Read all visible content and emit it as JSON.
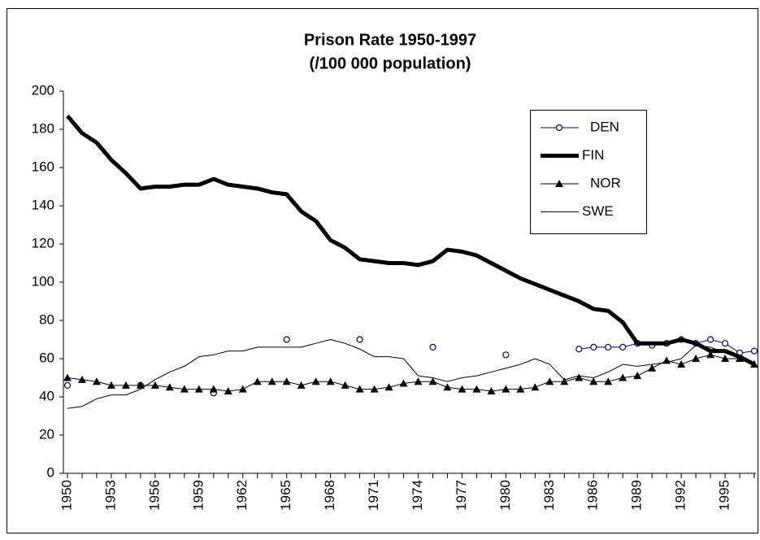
{
  "chart_data": {
    "type": "line",
    "title": [
      "Prison Rate 1950-1997",
      "(/100 000 population)"
    ],
    "x": [
      1950,
      1951,
      1952,
      1953,
      1954,
      1955,
      1956,
      1957,
      1958,
      1959,
      1960,
      1961,
      1962,
      1963,
      1964,
      1965,
      1966,
      1967,
      1968,
      1969,
      1970,
      1971,
      1972,
      1973,
      1974,
      1975,
      1976,
      1977,
      1978,
      1979,
      1980,
      1981,
      1982,
      1983,
      1984,
      1985,
      1986,
      1987,
      1988,
      1989,
      1990,
      1991,
      1992,
      1993,
      1994,
      1995,
      1996,
      1997
    ],
    "xlim": [
      1950,
      1997
    ],
    "xticks": [
      1950,
      1953,
      1956,
      1959,
      1962,
      1965,
      1968,
      1971,
      1974,
      1977,
      1980,
      1983,
      1986,
      1989,
      1992,
      1995
    ],
    "ylim": [
      0,
      200
    ],
    "yticks": [
      0,
      20,
      40,
      60,
      80,
      100,
      120,
      140,
      160,
      180,
      200
    ],
    "grid": false,
    "legend": "upper right",
    "series": [
      {
        "name": "DEN",
        "color": "#000080",
        "line_width": 1,
        "marker": "circle",
        "values": [
          46,
          null,
          null,
          null,
          null,
          46,
          null,
          null,
          null,
          null,
          42,
          null,
          null,
          null,
          null,
          70,
          null,
          null,
          null,
          null,
          70,
          null,
          null,
          null,
          null,
          66,
          null,
          null,
          null,
          null,
          62,
          null,
          null,
          null,
          null,
          65,
          66,
          66,
          66,
          68,
          67,
          68,
          70,
          68,
          70,
          68,
          63,
          64
        ]
      },
      {
        "name": "FIN",
        "color": "#000000",
        "line_width": 5,
        "marker": "none",
        "values": [
          187,
          178,
          173,
          164,
          157,
          149,
          150,
          150,
          151,
          151,
          154,
          151,
          150,
          149,
          147,
          146,
          137,
          132,
          122,
          118,
          112,
          111,
          110,
          110,
          109,
          111,
          117,
          116,
          114,
          110,
          106,
          102,
          99,
          96,
          93,
          90,
          86,
          85,
          79,
          68,
          68,
          68,
          70,
          68,
          64,
          64,
          61,
          57
        ]
      },
      {
        "name": "NOR",
        "color": "#000000",
        "line_width": 1,
        "marker": "triangle",
        "values": [
          50,
          49,
          48,
          46,
          46,
          46,
          46,
          45,
          44,
          44,
          44,
          43,
          44,
          48,
          48,
          48,
          46,
          48,
          48,
          46,
          44,
          44,
          45,
          47,
          48,
          48,
          45,
          44,
          44,
          43,
          44,
          44,
          45,
          48,
          48,
          50,
          48,
          48,
          50,
          51,
          55,
          59,
          57,
          60,
          62,
          60,
          60,
          57
        ]
      },
      {
        "name": "SWE",
        "color": "#000000",
        "line_width": 1,
        "marker": "none",
        "values": [
          34,
          35,
          39,
          41,
          41,
          44,
          49,
          53,
          56,
          61,
          62,
          64,
          64,
          66,
          66,
          66,
          66,
          68,
          70,
          68,
          65,
          61,
          61,
          60,
          51,
          50,
          48,
          50,
          51,
          53,
          55,
          57,
          60,
          57,
          49,
          51,
          50,
          53,
          57,
          56,
          57,
          58,
          60,
          67,
          66,
          63,
          60,
          57
        ]
      }
    ]
  }
}
